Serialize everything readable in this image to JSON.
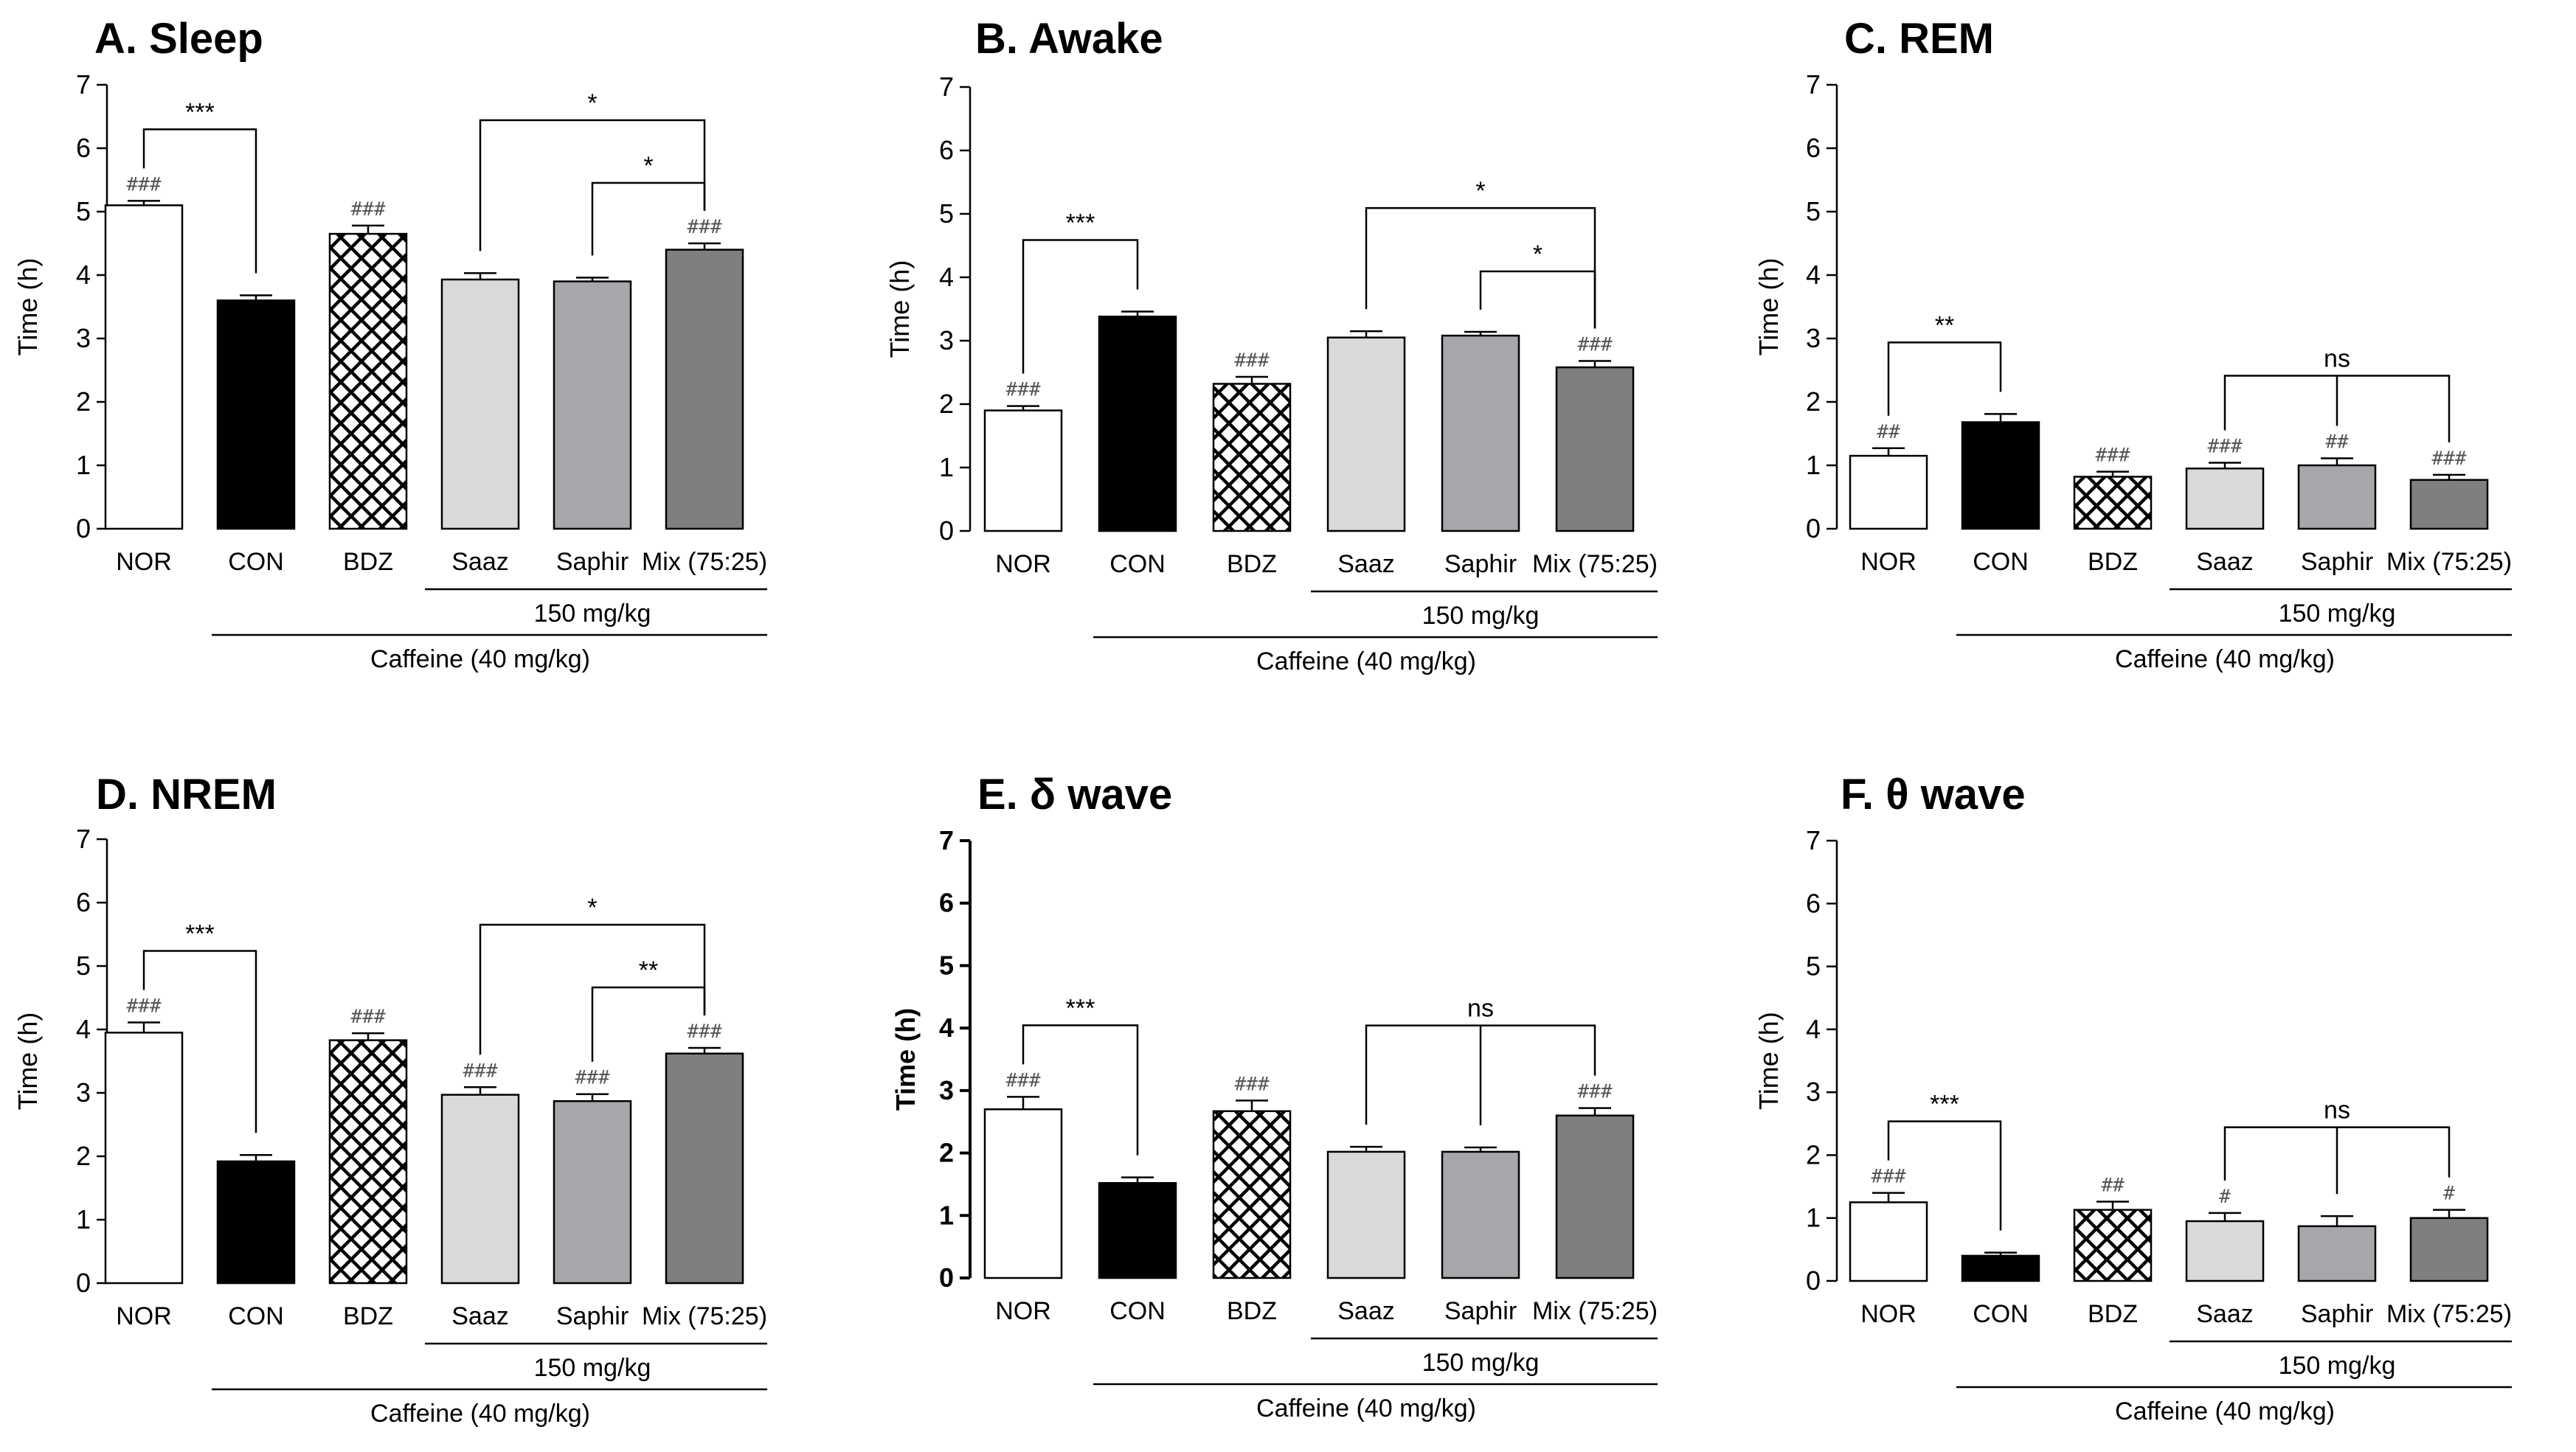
{
  "chart_data": [
    {
      "type": "bar",
      "title": "A.  Sleep",
      "ylabel": "Time (h)",
      "ylim": [
        0,
        7
      ],
      "yticks": [
        "0",
        "1",
        "2",
        "3",
        "4",
        "5",
        "6",
        "7"
      ],
      "categories": [
        "NOR",
        "CON",
        "BDZ",
        "Saaz",
        "Saphir",
        "Mix (75:25)"
      ],
      "values": [
        5.1,
        3.6,
        4.65,
        3.93,
        3.9,
        4.4
      ],
      "errors": [
        0.07,
        0.08,
        0.13,
        0.1,
        0.06,
        0.1
      ],
      "marks": [
        "###",
        "",
        "###",
        "",
        "",
        "###"
      ],
      "comparisons": [
        {
          "from": 0,
          "to": 1,
          "label": "***"
        },
        {
          "from": 3,
          "to": 5,
          "label": "*"
        },
        {
          "from": 4,
          "to": 5,
          "label": "*"
        }
      ],
      "group_dose": "150 mg/kg",
      "group_caffeine": "Caffeine (40 mg/kg)"
    },
    {
      "type": "bar",
      "title": "B. Awake",
      "ylabel": "Time (h)",
      "ylim": [
        0,
        7
      ],
      "yticks": [
        "0",
        "1",
        "2",
        "3",
        "4",
        "5",
        "6",
        "7"
      ],
      "categories": [
        "NOR",
        "CON",
        "BDZ",
        "Saaz",
        "Saphir",
        "Mix (75:25)"
      ],
      "values": [
        1.9,
        3.38,
        2.32,
        3.05,
        3.08,
        2.58
      ],
      "errors": [
        0.07,
        0.08,
        0.11,
        0.1,
        0.06,
        0.1
      ],
      "marks": [
        "###",
        "",
        "###",
        "",
        "",
        "###"
      ],
      "comparisons": [
        {
          "from": 0,
          "to": 1,
          "label": "***"
        },
        {
          "from": 3,
          "to": 5,
          "label": "*"
        },
        {
          "from": 4,
          "to": 5,
          "label": "*"
        }
      ],
      "group_dose": "150 mg/kg",
      "group_caffeine": "Caffeine (40 mg/kg)"
    },
    {
      "type": "bar",
      "title": "C.  REM",
      "ylabel": "Time (h)",
      "ylim": [
        0,
        7
      ],
      "yticks": [
        "0",
        "1",
        "2",
        "3",
        "4",
        "5",
        "6",
        "7"
      ],
      "categories": [
        "NOR",
        "CON",
        "BDZ",
        "Saaz",
        "Saphir",
        "Mix (75:25)"
      ],
      "values": [
        1.15,
        1.68,
        0.82,
        0.95,
        1.0,
        0.77
      ],
      "errors": [
        0.12,
        0.13,
        0.08,
        0.09,
        0.11,
        0.08
      ],
      "marks": [
        "##",
        "",
        "###",
        "###",
        "##",
        "###"
      ],
      "comparisons": [
        {
          "from": 0,
          "to": 1,
          "label": "**"
        },
        {
          "from": 3,
          "to": 5,
          "mid": 4,
          "label": "ns"
        }
      ],
      "group_dose": "150 mg/kg",
      "group_caffeine": "Caffeine (40 mg/kg)"
    },
    {
      "type": "bar",
      "title": "D.  NREM",
      "ylabel": "Time (h)",
      "ylim": [
        0,
        7
      ],
      "yticks": [
        "0",
        "1",
        "2",
        "3",
        "4",
        "5",
        "6",
        "7"
      ],
      "categories": [
        "NOR",
        "CON",
        "BDZ",
        "Saaz",
        "Saphir",
        "Mix (75:25)"
      ],
      "values": [
        3.95,
        1.92,
        3.83,
        2.97,
        2.87,
        3.62
      ],
      "errors": [
        0.16,
        0.1,
        0.11,
        0.12,
        0.11,
        0.09
      ],
      "marks": [
        "###",
        "",
        "###",
        "###",
        "###",
        "###"
      ],
      "comparisons": [
        {
          "from": 0,
          "to": 1,
          "label": "***"
        },
        {
          "from": 3,
          "to": 5,
          "label": "*"
        },
        {
          "from": 4,
          "to": 5,
          "label": "**"
        }
      ],
      "group_dose": "150 mg/kg",
      "group_caffeine": "Caffeine (40 mg/kg)"
    },
    {
      "type": "bar",
      "title": "E. δ   wave",
      "ylabel": "Time (h)",
      "ylim": [
        0,
        7
      ],
      "yticks": [
        "0",
        "1",
        "2",
        "3",
        "4",
        "5",
        "6",
        "7"
      ],
      "categories": [
        "NOR",
        "CON",
        "BDZ",
        "Saaz",
        "Saphir",
        "Mix (75:25)"
      ],
      "values": [
        2.7,
        1.52,
        2.67,
        2.02,
        2.02,
        2.6
      ],
      "errors": [
        0.2,
        0.09,
        0.17,
        0.08,
        0.07,
        0.12
      ],
      "marks": [
        "###",
        "",
        "###",
        "",
        "",
        "###"
      ],
      "comparisons": [
        {
          "from": 0,
          "to": 1,
          "label": "***"
        },
        {
          "from": 3,
          "to": 5,
          "mid": 4,
          "label": "ns"
        }
      ],
      "group_dose": "150 mg/kg",
      "group_caffeine": "Caffeine (40 mg/kg)",
      "bold_axis": true
    },
    {
      "type": "bar",
      "title": "F. θ   wave",
      "ylabel": "Time (h)",
      "ylim": [
        0,
        7
      ],
      "yticks": [
        "0",
        "1",
        "2",
        "3",
        "4",
        "5",
        "6",
        "7"
      ],
      "categories": [
        "NOR",
        "CON",
        "BDZ",
        "Saaz",
        "Saphir",
        "Mix (75:25)"
      ],
      "values": [
        1.25,
        0.4,
        1.13,
        0.95,
        0.87,
        1.0
      ],
      "errors": [
        0.15,
        0.05,
        0.13,
        0.13,
        0.16,
        0.13
      ],
      "marks": [
        "###",
        "",
        "##",
        "#",
        "",
        "#"
      ],
      "comparisons": [
        {
          "from": 0,
          "to": 1,
          "label": "***"
        },
        {
          "from": 3,
          "to": 5,
          "mid": 4,
          "label": "ns"
        }
      ],
      "group_dose": "150 mg/kg",
      "group_caffeine": "Caffeine (40 mg/kg)"
    }
  ],
  "colors": {
    "bar_fills": [
      "#ffffff",
      "#000000",
      "#ffffff",
      "#d9d9d9",
      "#a6a6ab",
      "#7f7f7f"
    ],
    "stroke": "#000000",
    "hash_color": "#555555"
  }
}
